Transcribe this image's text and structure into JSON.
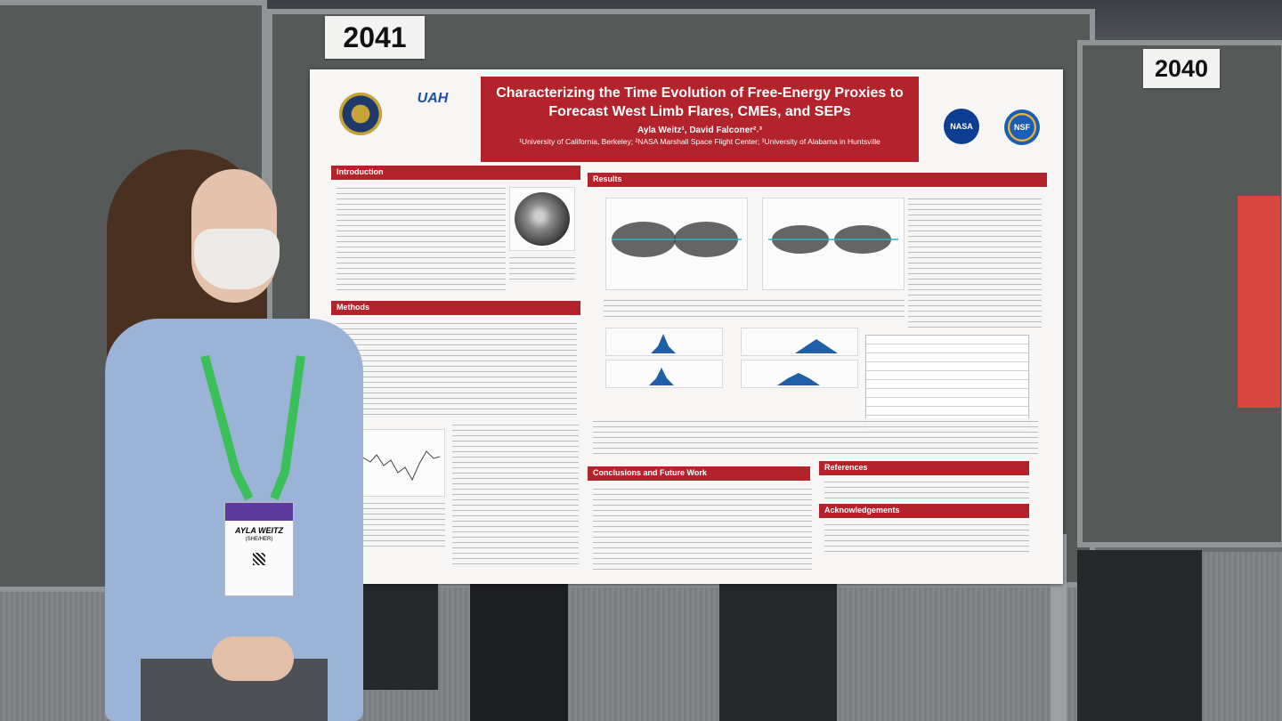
{
  "booth_numbers": {
    "left": "2041",
    "right": "2040"
  },
  "poster": {
    "title": "Characterizing the Time Evolution of Free-Energy Proxies to Forecast West Limb Flares, CMEs, and SEPs",
    "authors": "Ayla Weitz¹, David Falconer²˒³",
    "affiliations": "¹University of California, Berkeley; ²NASA Marshall Space Flight Center; ³University of Alabama in Huntsville",
    "logos": {
      "uah": "UAH",
      "nasa": "NASA",
      "nsf": "NSF"
    },
    "sections": {
      "introduction": "Introduction",
      "methods": "Methods",
      "results": "Results",
      "conclusions": "Conclusions and Future Work",
      "references": "References",
      "acknowledgements": "Acknowledgements"
    }
  },
  "badge": {
    "name": "AYLA WEITZ",
    "pronouns": "(SHE/HER)"
  },
  "colors": {
    "poster_red": "#b3232b",
    "lanyard_green": "#3bbf58",
    "shirt_blue": "#9bb3d6"
  }
}
